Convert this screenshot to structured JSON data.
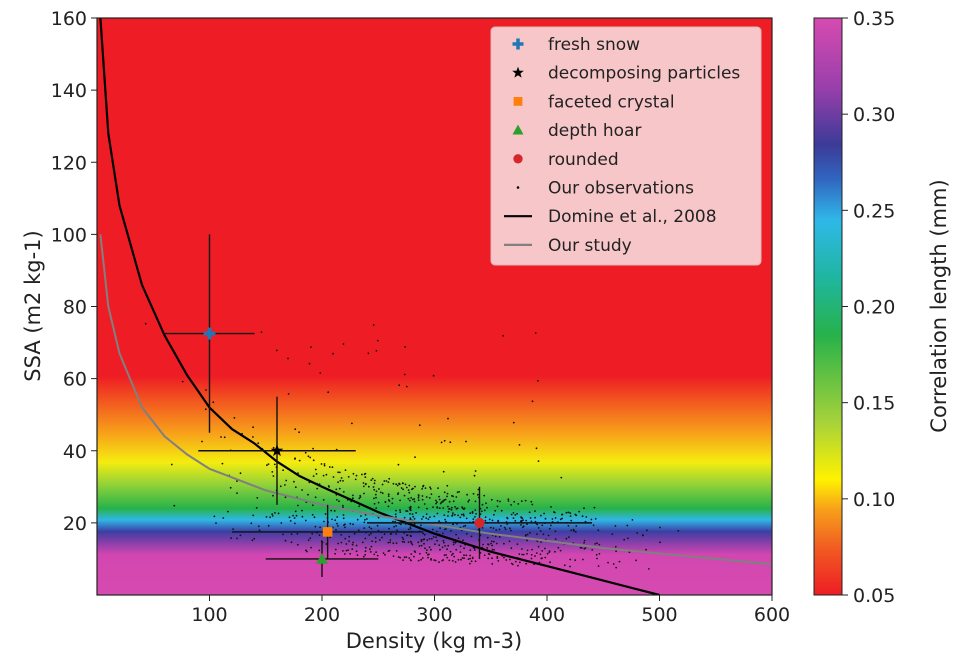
{
  "chart_data": {
    "type": "scatter",
    "title": "",
    "xlabel": "Density (kg m-3)",
    "ylabel": "SSA (m2 kg-1)",
    "xlim": [
      0,
      600
    ],
    "ylim": [
      0,
      160
    ],
    "xticks": [
      100,
      200,
      300,
      400,
      500,
      600
    ],
    "yticks": [
      20,
      40,
      60,
      80,
      100,
      120,
      140,
      160
    ],
    "colorbar": {
      "label": "Correlation length (mm)",
      "range": [
        0.05,
        0.35
      ],
      "ticks": [
        "0.05",
        "0.10",
        "0.15",
        "0.20",
        "0.25",
        "0.30",
        "0.35"
      ],
      "colormap": "nipy_spectral-like (red → yellow → green → cyan → blue → purple → magenta)"
    },
    "legend_position": "top-right",
    "grid": false,
    "series": [
      {
        "name": "fresh snow",
        "marker": "plus",
        "color": "#1f77b4",
        "x": 100,
        "y": 72.5,
        "x_err": 40,
        "y_err_low": 27.5,
        "y_err_high": 27.5
      },
      {
        "name": "decomposing particles",
        "marker": "star",
        "color": "#000000",
        "x": 160,
        "y": 40,
        "x_err": 70,
        "y_err_low": 15,
        "y_err_high": 15
      },
      {
        "name": "faceted crystal",
        "marker": "square",
        "color": "#ff7f0e",
        "x": 205,
        "y": 17.5,
        "x_err": 85,
        "y_err_low": 7.5,
        "y_err_high": 7.5
      },
      {
        "name": "depth hoar",
        "marker": "triangle",
        "color": "#2ca02c",
        "x": 200,
        "y": 10,
        "x_err": 50,
        "y_err_low": 5,
        "y_err_high": 5
      },
      {
        "name": "rounded",
        "marker": "circle",
        "color": "#d62728",
        "x": 340,
        "y": 20,
        "x_err": 100,
        "y_err_low": 10,
        "y_err_high": 10
      },
      {
        "name": "Our observations",
        "marker": "dot",
        "color": "#000000",
        "note": "≈900 small points, densest around density 200–400 and SSA 5–40"
      },
      {
        "name": "Domine et al., 2008",
        "type": "line",
        "color": "#000000",
        "x": [
          3,
          10,
          20,
          40,
          60,
          80,
          100,
          120,
          140,
          160,
          180,
          200,
          250,
          300,
          350,
          400,
          450,
          500
        ],
        "y": [
          160,
          128,
          108,
          86,
          72,
          61,
          52,
          46,
          42,
          37,
          33,
          30,
          23,
          17,
          12,
          8,
          4,
          0
        ]
      },
      {
        "name": "Our study",
        "type": "line",
        "color": "#808080",
        "x": [
          3,
          10,
          20,
          40,
          60,
          80,
          100,
          150,
          200,
          250,
          300,
          350,
          400,
          450,
          500,
          550,
          600
        ],
        "y": [
          100,
          80,
          67,
          52,
          44,
          39,
          35,
          29,
          25,
          22,
          19.5,
          17,
          15,
          13,
          11.5,
          10,
          8.5
        ]
      }
    ]
  }
}
